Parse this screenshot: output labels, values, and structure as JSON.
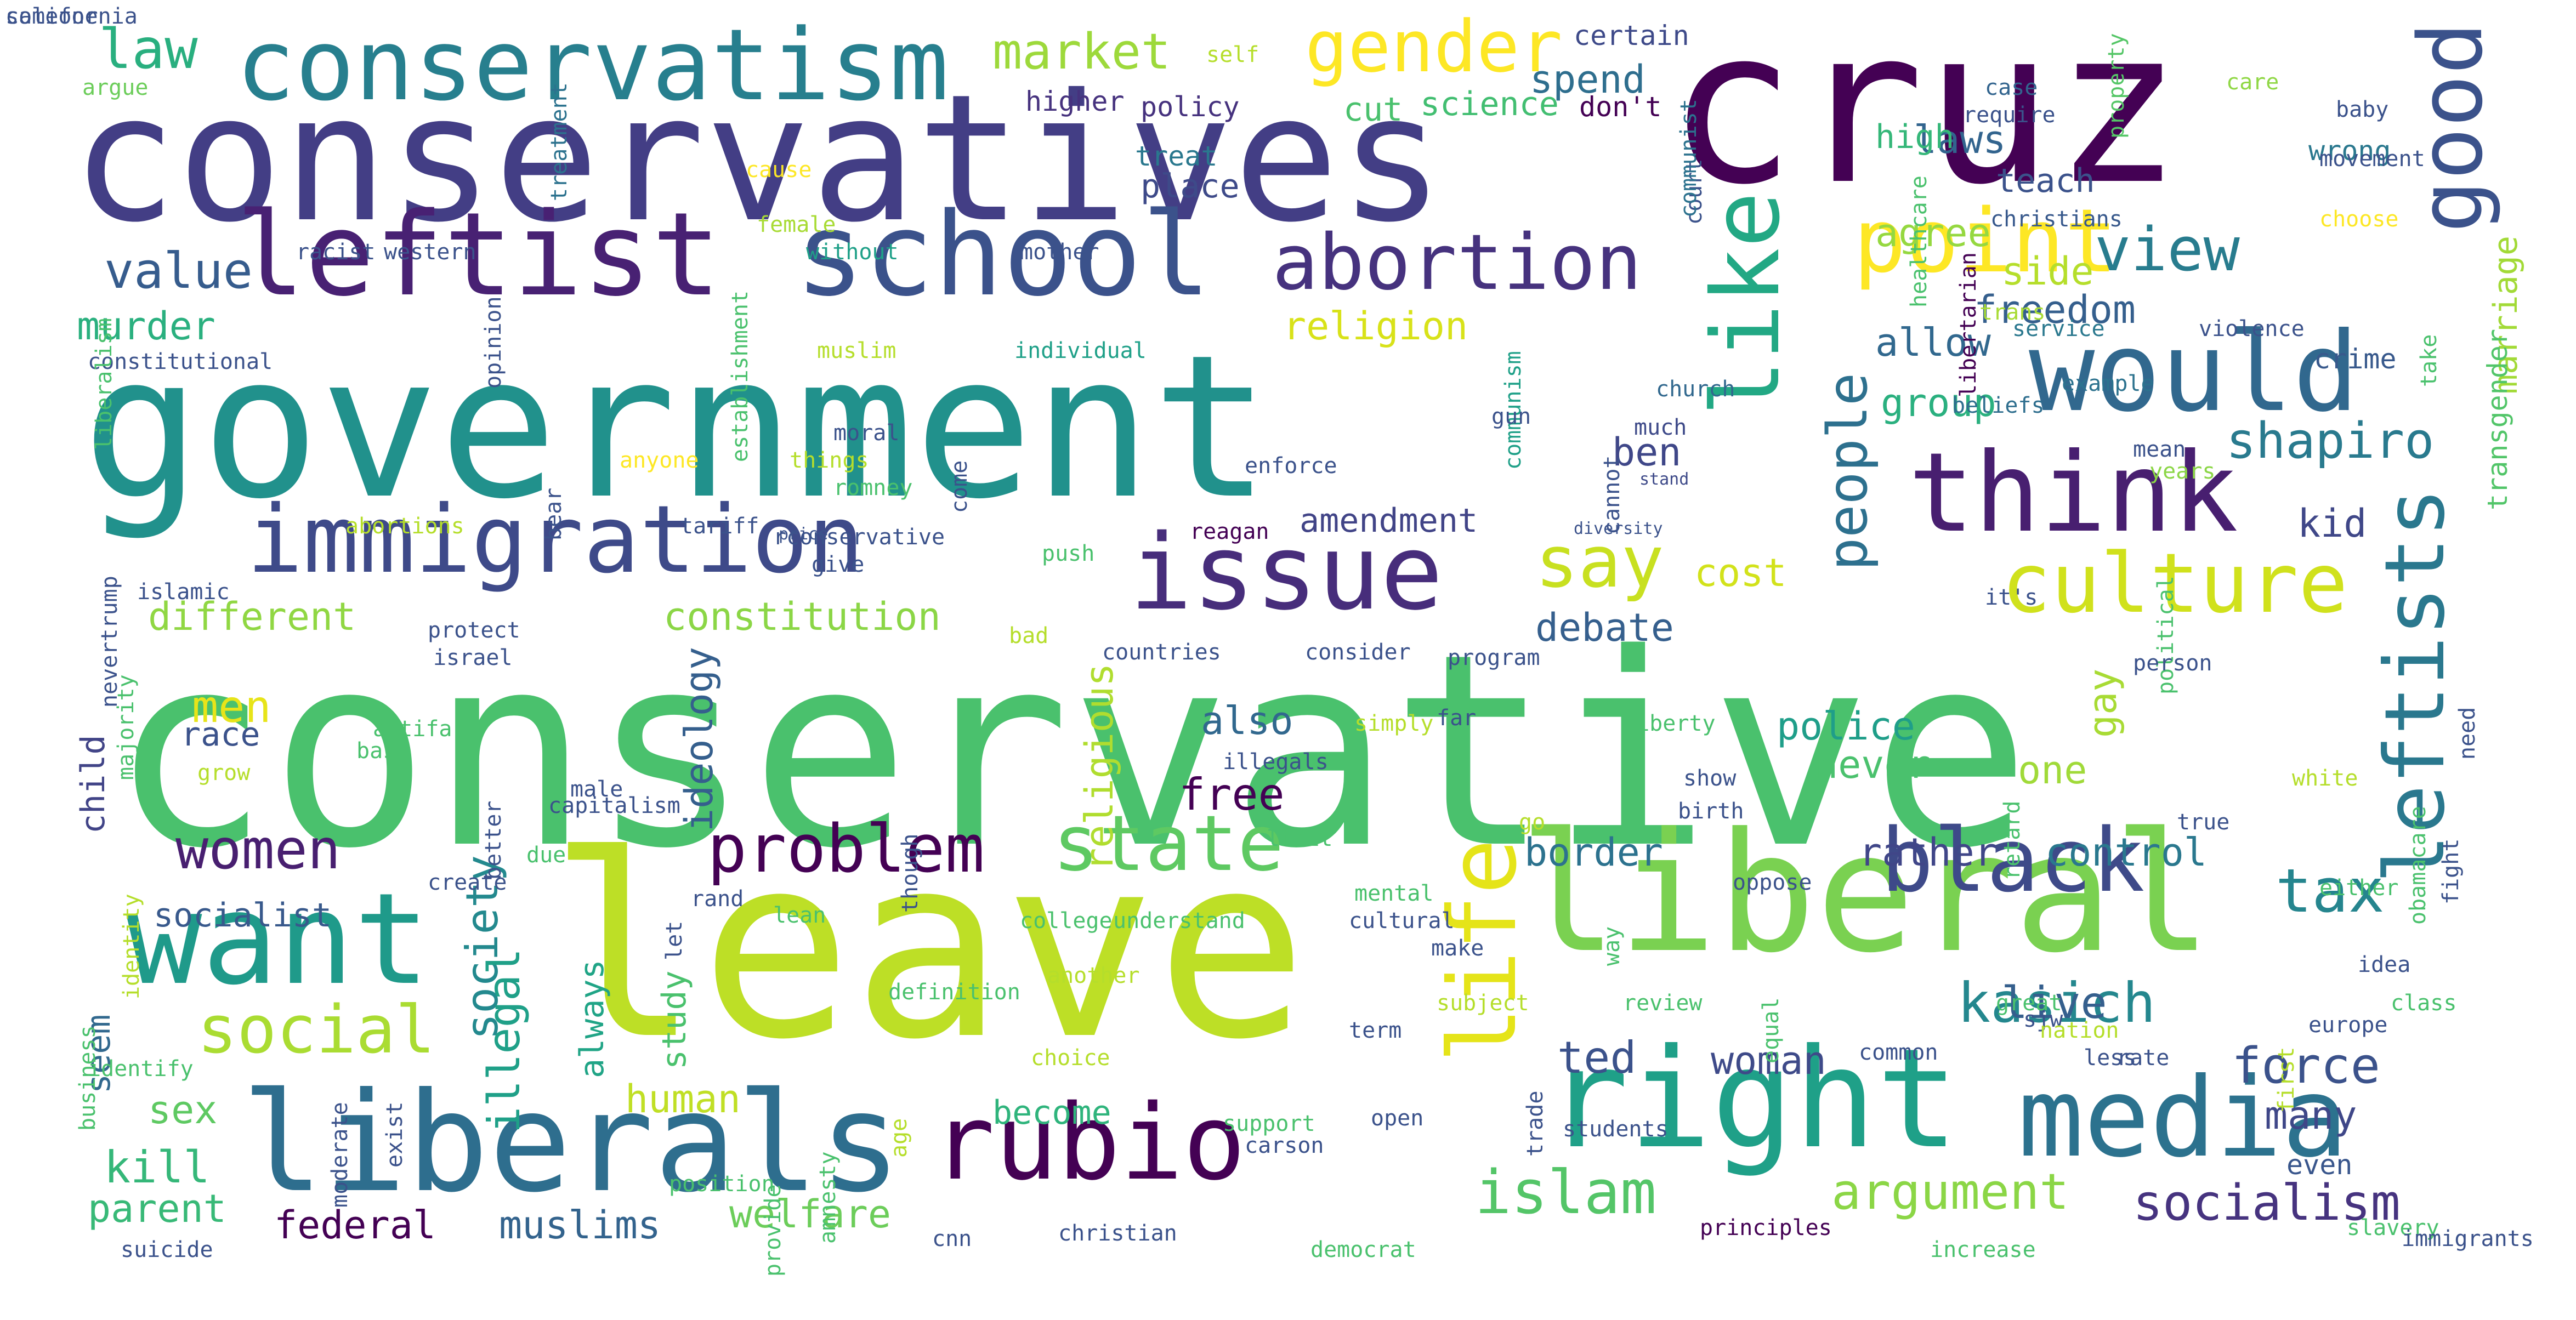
{
  "words": [
    {
      "text": "conservative",
      "color": "#4ac16d"
    },
    {
      "text": "leave",
      "color": "#bddf26"
    },
    {
      "text": "government",
      "color": "#21918c"
    },
    {
      "text": "conservatives",
      "color": "#433e85"
    },
    {
      "text": "cruz",
      "color": "#440154"
    },
    {
      "text": "liberal",
      "color": "#7ad151"
    },
    {
      "text": "right",
      "color": "#1fa088"
    },
    {
      "text": "liberals",
      "color": "#2e6e8e"
    },
    {
      "text": "leftist",
      "color": "#482173"
    },
    {
      "text": "school",
      "color": "#3b528b"
    },
    {
      "text": "conservatism",
      "color": "#277f8e"
    },
    {
      "text": "immigration",
      "color": "#3e4a89"
    },
    {
      "text": "rubio",
      "color": "#440154"
    },
    {
      "text": "media",
      "color": "#2c728e"
    },
    {
      "text": "want",
      "color": "#1f9a8a"
    },
    {
      "text": "would",
      "color": "#31688e"
    },
    {
      "text": "think",
      "color": "#481f70"
    },
    {
      "text": "issue",
      "color": "#472d7b"
    },
    {
      "text": "leftists",
      "color": "#2a788e"
    },
    {
      "text": "like",
      "color": "#22a884"
    },
    {
      "text": "abortion",
      "color": "#46327e"
    },
    {
      "text": "point",
      "color": "#fde725"
    },
    {
      "text": "culture",
      "color": "#d0e11c"
    },
    {
      "text": "life",
      "color": "#e5e419"
    },
    {
      "text": "good",
      "color": "#3b528b"
    },
    {
      "text": "black",
      "color": "#3e4a89"
    },
    {
      "text": "state",
      "color": "#5ec962"
    },
    {
      "text": "problem",
      "color": "#440154"
    },
    {
      "text": "social",
      "color": "#aadc32"
    },
    {
      "text": "women",
      "color": "#481f70"
    },
    {
      "text": "islam",
      "color": "#54c568"
    },
    {
      "text": "gender",
      "color": "#fde725"
    },
    {
      "text": "say",
      "color": "#c8e020"
    },
    {
      "text": "view",
      "color": "#287c8e"
    },
    {
      "text": "tax",
      "color": "#25858e"
    },
    {
      "text": "people",
      "color": "#2d708e"
    },
    {
      "text": "shapiro",
      "color": "#297a8e"
    },
    {
      "text": "socialism",
      "color": "#46337f"
    },
    {
      "text": "kasich",
      "color": "#24878e"
    },
    {
      "text": "argument",
      "color": "#8bd646"
    },
    {
      "text": "force",
      "color": "#3b528b"
    },
    {
      "text": "market",
      "color": "#9dd93b"
    },
    {
      "text": "law",
      "color": "#29af7f"
    },
    {
      "text": "value",
      "color": "#365c8d"
    },
    {
      "text": "murder",
      "color": "#2ab07f"
    },
    {
      "text": "different",
      "color": "#90d743"
    },
    {
      "text": "human",
      "color": "#c0df25"
    },
    {
      "text": "kill",
      "color": "#35b779"
    },
    {
      "text": "sex",
      "color": "#5ec962"
    },
    {
      "text": "parent",
      "color": "#38b977"
    },
    {
      "text": "federal",
      "color": "#440154"
    },
    {
      "text": "muslims",
      "color": "#33638d"
    },
    {
      "text": "welfare",
      "color": "#6ccd5a"
    },
    {
      "text": "constitution",
      "color": "#8bd646"
    },
    {
      "text": "amendment",
      "color": "#414487"
    },
    {
      "text": "religion",
      "color": "#d8e219"
    },
    {
      "text": "freedom",
      "color": "#355f8d"
    },
    {
      "text": "allow",
      "color": "#31688e"
    },
    {
      "text": "group",
      "color": "#2ab07f"
    },
    {
      "text": "ben",
      "color": "#3f4788"
    },
    {
      "text": "debate",
      "color": "#355f8d"
    },
    {
      "text": "police",
      "color": "#1f9e89"
    },
    {
      "text": "never",
      "color": "#4ac16d"
    },
    {
      "text": "one",
      "color": "#a0da39"
    },
    {
      "text": "also",
      "color": "#31688e"
    },
    {
      "text": "free",
      "color": "#440154"
    },
    {
      "text": "border",
      "color": "#2c728e"
    },
    {
      "text": "rather",
      "color": "#404688"
    },
    {
      "text": "control",
      "color": "#2a788e"
    },
    {
      "text": "woman",
      "color": "#3e4a89"
    },
    {
      "text": "ted",
      "color": "#3b528b"
    },
    {
      "text": "live",
      "color": "#355f8d"
    },
    {
      "text": "many",
      "color": "#3f4788"
    },
    {
      "text": "even",
      "color": "#39568c"
    },
    {
      "text": "side",
      "color": "#b5de2b"
    },
    {
      "text": "kid",
      "color": "#3f4788"
    },
    {
      "text": "spend",
      "color": "#2e6e8e"
    },
    {
      "text": "agree",
      "color": "#95d840"
    },
    {
      "text": "laws",
      "color": "#32648e"
    },
    {
      "text": "men",
      "color": "#e7e419"
    },
    {
      "text": "race",
      "color": "#3b528b"
    },
    {
      "text": "child",
      "color": "#414487"
    },
    {
      "text": "socialist",
      "color": "#38598c"
    },
    {
      "text": "seem",
      "color": "#31688e"
    },
    {
      "text": "society",
      "color": "#23898e"
    },
    {
      "text": "illegal",
      "color": "#1fa088"
    },
    {
      "text": "always",
      "color": "#20a486"
    },
    {
      "text": "study",
      "color": "#4ac16d"
    },
    {
      "text": "ideology",
      "color": "#355f8d"
    },
    {
      "text": "religious",
      "color": "#b0dd2f"
    },
    {
      "text": "become",
      "color": "#2fb47c"
    },
    {
      "text": "gay",
      "color": "#a8db34"
    },
    {
      "text": "cost",
      "color": "#d2e21b"
    },
    {
      "text": "marriage",
      "color": "#a2da37"
    },
    {
      "text": "transgender",
      "color": "#52c569"
    },
    {
      "text": "teach",
      "color": "#3b528b"
    },
    {
      "text": "high",
      "color": "#35b779"
    },
    {
      "text": "science",
      "color": "#42be71"
    },
    {
      "text": "cut",
      "color": "#4ac16d"
    },
    {
      "text": "policy",
      "color": "#46327e"
    },
    {
      "text": "higher",
      "color": "#46327e"
    },
    {
      "text": "treat",
      "color": "#2a788e"
    },
    {
      "text": "place",
      "color": "#3e4a89"
    },
    {
      "text": "self",
      "color": "#b5de2b"
    },
    {
      "text": "certain",
      "color": "#3e4a89"
    },
    {
      "text": "don't",
      "color": "#440154"
    },
    {
      "text": "case",
      "color": "#32648e"
    },
    {
      "text": "require",
      "color": "#3b528b"
    },
    {
      "text": "care",
      "color": "#8fd744"
    },
    {
      "text": "baby",
      "color": "#3b528b"
    },
    {
      "text": "wrong",
      "color": "#2a788e"
    },
    {
      "text": "movement",
      "color": "#3b528b"
    },
    {
      "text": "property",
      "color": "#55c667"
    },
    {
      "text": "choose",
      "color": "#fde725"
    },
    {
      "text": "christians",
      "color": "#38598c"
    },
    {
      "text": "libertarian",
      "color": "#440154"
    },
    {
      "text": "healthcare",
      "color": "#4ac16d"
    },
    {
      "text": "trans",
      "color": "#a8db34"
    },
    {
      "text": "service",
      "color": "#2a788e"
    },
    {
      "text": "violence",
      "color": "#3b528b"
    },
    {
      "text": "beliefs",
      "color": "#2e6e8e"
    },
    {
      "text": "example",
      "color": "#2c728e"
    },
    {
      "text": "church",
      "color": "#31688e"
    },
    {
      "text": "crime",
      "color": "#38598c"
    },
    {
      "text": "mean",
      "color": "#3b528b"
    },
    {
      "text": "years",
      "color": "#8bd646"
    },
    {
      "text": "take",
      "color": "#4ac16d"
    },
    {
      "text": "stand",
      "color": "#3e4a89"
    },
    {
      "text": "much",
      "color": "#3e4a89"
    },
    {
      "text": "cannot",
      "color": "#3b528b"
    },
    {
      "text": "communism",
      "color": "#1fa088"
    },
    {
      "text": "court",
      "color": "#3b528b"
    },
    {
      "text": "communist",
      "color": "#2c728e"
    },
    {
      "text": "argue",
      "color": "#6ccd5a"
    },
    {
      "text": "treatment",
      "color": "#2c728e"
    },
    {
      "text": "cause",
      "color": "#fde725"
    },
    {
      "text": "female",
      "color": "#a8db34"
    },
    {
      "text": "without",
      "color": "#1fa088"
    },
    {
      "text": "mother",
      "color": "#3b528b"
    },
    {
      "text": "racist",
      "color": "#3b528b"
    },
    {
      "text": "western",
      "color": "#3b528b"
    },
    {
      "text": "muslim",
      "color": "#b5de2b"
    },
    {
      "text": "individual",
      "color": "#1fa088"
    },
    {
      "text": "constitutional",
      "color": "#3b528b"
    },
    {
      "text": "opinion",
      "color": "#3b528b"
    },
    {
      "text": "establishment",
      "color": "#4ac16d"
    },
    {
      "text": "liberalism",
      "color": "#4ac16d"
    },
    {
      "text": "bear",
      "color": "#3b528b"
    },
    {
      "text": "anyone",
      "color": "#fde725"
    },
    {
      "text": "things",
      "color": "#b5de2b"
    },
    {
      "text": "moral",
      "color": "#3b528b"
    },
    {
      "text": "romney",
      "color": "#4ac16d"
    },
    {
      "text": "come",
      "color": "#3b528b"
    },
    {
      "text": "gun",
      "color": "#3b528b"
    },
    {
      "text": "enforce",
      "color": "#3b528b"
    },
    {
      "text": "abortions",
      "color": "#b5de2b"
    },
    {
      "text": "tariff",
      "color": "#3b528b"
    },
    {
      "text": "rconservative",
      "color": "#3b528b"
    },
    {
      "text": "price",
      "color": "#3b528b"
    },
    {
      "text": "push",
      "color": "#4ac16d"
    },
    {
      "text": "reagan",
      "color": "#440154"
    },
    {
      "text": "diversity",
      "color": "#3b528b"
    },
    {
      "text": "islamic",
      "color": "#3b528b"
    },
    {
      "text": "nevertrump",
      "color": "#3b528b"
    },
    {
      "text": "majority",
      "color": "#4ac16d"
    },
    {
      "text": "protect",
      "color": "#3b528b"
    },
    {
      "text": "israel",
      "color": "#3b528b"
    },
    {
      "text": "give",
      "color": "#3b528b"
    },
    {
      "text": "bad",
      "color": "#b5de2b"
    },
    {
      "text": "countries",
      "color": "#3b528b"
    },
    {
      "text": "consider",
      "color": "#3b528b"
    },
    {
      "text": "program",
      "color": "#3b528b"
    },
    {
      "text": "it's",
      "color": "#3b528b"
    },
    {
      "text": "political",
      "color": "#4ac16d"
    },
    {
      "text": "person",
      "color": "#3b528b"
    },
    {
      "text": "need",
      "color": "#3b528b"
    },
    {
      "text": "obamacare",
      "color": "#4ac16d"
    },
    {
      "text": "retard",
      "color": "#4ac16d"
    },
    {
      "text": "antifa",
      "color": "#4ac16d"
    },
    {
      "text": "base",
      "color": "#4ac16d"
    },
    {
      "text": "grow",
      "color": "#b5de2b"
    },
    {
      "text": "better",
      "color": "#3b528b"
    },
    {
      "text": "capitalism",
      "color": "#3b528b"
    },
    {
      "text": "male",
      "color": "#3b528b"
    },
    {
      "text": "rand",
      "color": "#3b528b"
    },
    {
      "text": "though",
      "color": "#3b528b"
    },
    {
      "text": "illegals",
      "color": "#3b528b"
    },
    {
      "text": "simply",
      "color": "#b5de2b"
    },
    {
      "text": "far",
      "color": "#3b528b"
    },
    {
      "text": "liberty",
      "color": "#4ac16d"
    },
    {
      "text": "show",
      "color": "#3b528b"
    },
    {
      "text": "birth",
      "color": "#3b528b"
    },
    {
      "text": "go",
      "color": "#b5de2b"
    },
    {
      "text": "limit",
      "color": "#4ac16d"
    },
    {
      "text": "true",
      "color": "#3b528b"
    },
    {
      "text": "white",
      "color": "#b5de2b"
    },
    {
      "text": "due",
      "color": "#4ac16d"
    },
    {
      "text": "create",
      "color": "#3b528b"
    },
    {
      "text": "identity",
      "color": "#b5de2b"
    },
    {
      "text": "lean",
      "color": "#4ac16d"
    },
    {
      "text": "college",
      "color": "#4ac16d"
    },
    {
      "text": "understand",
      "color": "#4ac16d"
    },
    {
      "text": "mental",
      "color": "#4ac16d"
    },
    {
      "text": "cultural",
      "color": "#3b528b"
    },
    {
      "text": "make",
      "color": "#3b528b"
    },
    {
      "text": "oppose",
      "color": "#3b528b"
    },
    {
      "text": "way",
      "color": "#4ac16d"
    },
    {
      "text": "either",
      "color": "#4ac16d"
    },
    {
      "text": "fight",
      "color": "#3b528b"
    },
    {
      "text": "idea",
      "color": "#3b528b"
    },
    {
      "text": "class",
      "color": "#4ac16d"
    },
    {
      "text": "europe",
      "color": "#3b528b"
    },
    {
      "text": "first",
      "color": "#b5de2b"
    },
    {
      "text": "business",
      "color": "#4ac16d"
    },
    {
      "text": "identify",
      "color": "#4ac16d"
    },
    {
      "text": "let",
      "color": "#3b528b"
    },
    {
      "text": "definition",
      "color": "#4ac16d"
    },
    {
      "text": "another",
      "color": "#b5de2b"
    },
    {
      "text": "provide",
      "color": "#4ac16d"
    },
    {
      "text": "subject",
      "color": "#b5de2b"
    },
    {
      "text": "review",
      "color": "#4ac16d"
    },
    {
      "text": "equal",
      "color": "#4ac16d"
    },
    {
      "text": "great",
      "color": "#4ac16d"
    },
    {
      "text": "sjw",
      "color": "#3b528b"
    },
    {
      "text": "nation",
      "color": "#b5de2b"
    },
    {
      "text": "rate",
      "color": "#3b528b"
    },
    {
      "text": "term",
      "color": "#3b528b"
    },
    {
      "text": "choice",
      "color": "#b5de2b"
    },
    {
      "text": "common",
      "color": "#3b528b"
    },
    {
      "text": "less",
      "color": "#3b528b"
    },
    {
      "text": "carson",
      "color": "#3b528b"
    },
    {
      "text": "support",
      "color": "#4ac16d"
    },
    {
      "text": "open",
      "color": "#3b528b"
    },
    {
      "text": "trade",
      "color": "#3b528b"
    },
    {
      "text": "students",
      "color": "#3b528b"
    },
    {
      "text": "moderate",
      "color": "#3b528b"
    },
    {
      "text": "exist",
      "color": "#3b528b"
    },
    {
      "text": "position",
      "color": "#4ac16d"
    },
    {
      "text": "amnesty",
      "color": "#4ac16d"
    },
    {
      "text": "age",
      "color": "#b5de2b"
    },
    {
      "text": "slavery",
      "color": "#4ac16d"
    },
    {
      "text": "immigrants",
      "color": "#3b528b"
    },
    {
      "text": "suicide",
      "color": "#3b528b"
    },
    {
      "text": "cnn",
      "color": "#3b528b"
    },
    {
      "text": "christian",
      "color": "#3b528b"
    },
    {
      "text": "democrat",
      "color": "#4ac16d"
    },
    {
      "text": "principles",
      "color": "#440154"
    },
    {
      "text": "increase",
      "color": "#4ac16d"
    },
    {
      "text": "someone",
      "color": "#3b528b"
    },
    {
      "text": "california",
      "color": "#3b528b"
    }
  ]
}
